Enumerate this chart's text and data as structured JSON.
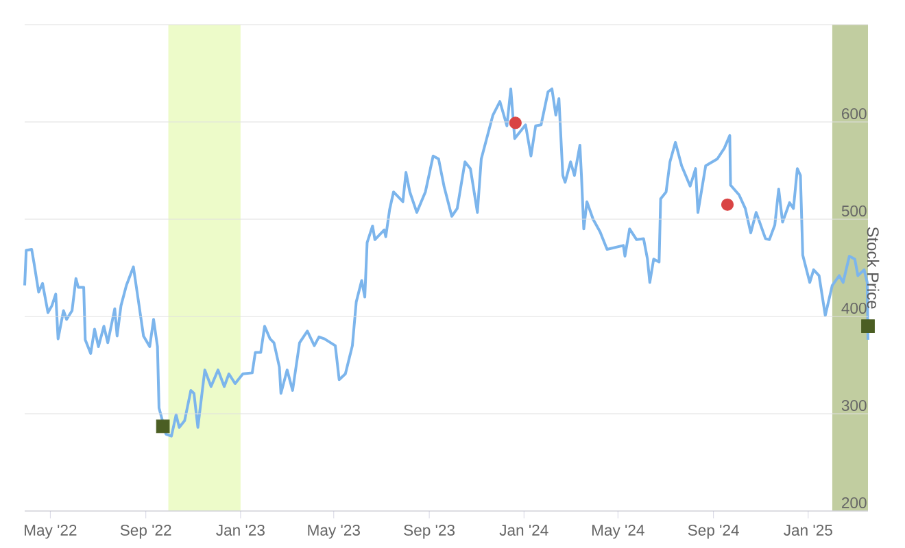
{
  "chart_data": {
    "type": "line",
    "ylabel": "Stock Price",
    "xlim": [
      "2022-03-29",
      "2025-03-19"
    ],
    "ylim": [
      200,
      700
    ],
    "xticks": [
      {
        "value": "2022-05-01",
        "label": "May '22"
      },
      {
        "value": "2022-09-01",
        "label": "Sep '22"
      },
      {
        "value": "2023-01-01",
        "label": "Jan '23"
      },
      {
        "value": "2023-05-01",
        "label": "May '23"
      },
      {
        "value": "2023-09-01",
        "label": "Sep '23"
      },
      {
        "value": "2024-01-01",
        "label": "Jan '24"
      },
      {
        "value": "2024-05-01",
        "label": "May '24"
      },
      {
        "value": "2024-09-01",
        "label": "Sep '24"
      },
      {
        "value": "2025-01-01",
        "label": "Jan '25"
      }
    ],
    "yticks": [
      200,
      300,
      400,
      500,
      600,
      {
        "value": 700,
        "label": null
      }
    ],
    "grid": "y",
    "bands": [
      {
        "axis": "x",
        "from": "2022-09-30",
        "to": "2023-01-01",
        "color": "#edfbc9"
      },
      {
        "axis": "x",
        "from": "2025-02-01",
        "to": "2025-03-19",
        "color": "#c1cda0"
      }
    ],
    "series": [
      {
        "color": "#7cb5ec",
        "x": [
          "2022-03-29",
          "2022-03-31",
          "2022-04-07",
          "2022-04-10",
          "2022-04-16",
          "2022-04-21",
          "2022-04-28",
          "2022-05-03",
          "2022-05-08",
          "2022-05-11",
          "2022-05-18",
          "2022-05-22",
          "2022-05-29",
          "2022-06-03",
          "2022-06-06",
          "2022-06-13",
          "2022-06-15",
          "2022-06-22",
          "2022-06-27",
          "2022-07-02",
          "2022-07-09",
          "2022-07-14",
          "2022-07-23",
          "2022-07-26",
          "2022-07-31",
          "2022-08-07",
          "2022-08-16",
          "2022-08-23",
          "2022-08-29",
          "2022-09-06",
          "2022-09-11",
          "2022-09-16",
          "2022-09-18",
          "2022-09-27",
          "2022-10-04",
          "2022-10-10",
          "2022-10-14",
          "2022-10-21",
          "2022-10-29",
          "2022-11-02",
          "2022-11-07",
          "2022-11-16",
          "2022-11-24",
          "2022-12-03",
          "2022-12-11",
          "2022-12-17",
          "2022-12-25",
          "2023-01-04",
          "2023-01-16",
          "2023-01-20",
          "2023-01-27",
          "2023-02-01",
          "2023-02-08",
          "2023-02-13",
          "2023-02-20",
          "2023-02-22",
          "2023-03-02",
          "2023-03-09",
          "2023-03-18",
          "2023-03-28",
          "2023-04-06",
          "2023-04-12",
          "2023-04-19",
          "2023-05-03",
          "2023-05-08",
          "2023-05-16",
          "2023-05-25",
          "2023-05-30",
          "2023-06-06",
          "2023-06-10",
          "2023-06-13",
          "2023-06-20",
          "2023-06-23",
          "2023-07-05",
          "2023-07-07",
          "2023-07-12",
          "2023-07-17",
          "2023-07-29",
          "2023-08-02",
          "2023-08-07",
          "2023-08-16",
          "2023-08-27",
          "2023-09-06",
          "2023-09-13",
          "2023-09-20",
          "2023-09-30",
          "2023-10-07",
          "2023-10-17",
          "2023-10-24",
          "2023-11-02",
          "2023-11-07",
          "2023-11-22",
          "2023-12-01",
          "2023-12-10",
          "2023-12-15",
          "2023-12-20",
          "2024-01-03",
          "2024-01-10",
          "2024-01-16",
          "2024-01-23",
          "2024-02-01",
          "2024-02-06",
          "2024-02-11",
          "2024-02-15",
          "2024-02-20",
          "2024-02-23",
          "2024-03-01",
          "2024-03-06",
          "2024-03-13",
          "2024-03-15",
          "2024-03-18",
          "2024-03-22",
          "2024-03-30",
          "2024-04-08",
          "2024-04-17",
          "2024-05-08",
          "2024-05-10",
          "2024-05-16",
          "2024-05-25",
          "2024-06-03",
          "2024-06-08",
          "2024-06-11",
          "2024-06-16",
          "2024-06-23",
          "2024-06-25",
          "2024-07-02",
          "2024-07-07",
          "2024-07-14",
          "2024-07-22",
          "2024-08-02",
          "2024-08-09",
          "2024-08-12",
          "2024-08-22",
          "2024-09-06",
          "2024-09-15",
          "2024-09-22",
          "2024-09-23",
          "2024-10-04",
          "2024-10-12",
          "2024-10-19",
          "2024-10-26",
          "2024-11-07",
          "2024-11-12",
          "2024-11-19",
          "2024-11-24",
          "2024-11-29",
          "2024-12-08",
          "2024-12-13",
          "2024-12-18",
          "2024-12-22",
          "2024-12-25",
          "2025-01-03",
          "2025-01-08",
          "2025-01-15",
          "2025-01-23",
          "2025-02-01",
          "2025-02-10",
          "2025-02-15",
          "2025-02-23",
          "2025-03-02",
          "2025-03-06",
          "2025-03-14",
          "2025-03-18",
          "2025-03-19"
        ],
        "values": [
          432,
          468,
          469,
          455,
          425,
          434,
          404,
          411,
          423,
          377,
          406,
          397,
          406,
          439,
          430,
          430,
          376,
          362,
          387,
          369,
          390,
          373,
          408,
          380,
          411,
          432,
          451,
          413,
          380,
          369,
          397,
          369,
          306,
          279,
          277,
          299,
          286,
          293,
          324,
          321,
          286,
          345,
          328,
          345,
          328,
          341,
          331,
          341,
          342,
          363,
          363,
          390,
          377,
          373,
          348,
          321,
          345,
          324,
          373,
          385,
          370,
          379,
          377,
          370,
          335,
          341,
          370,
          415,
          437,
          420,
          476,
          493,
          479,
          489,
          482,
          510,
          528,
          518,
          548,
          528,
          507,
          528,
          565,
          562,
          534,
          503,
          511,
          559,
          552,
          507,
          562,
          607,
          621,
          596,
          634,
          583,
          597,
          565,
          596,
          597,
          631,
          634,
          607,
          624,
          545,
          538,
          559,
          545,
          576,
          545,
          490,
          518,
          500,
          487,
          469,
          473,
          462,
          490,
          479,
          480,
          459,
          435,
          459,
          456,
          521,
          528,
          559,
          579,
          555,
          534,
          552,
          507,
          555,
          562,
          573,
          586,
          535,
          525,
          511,
          486,
          507,
          480,
          479,
          494,
          531,
          497,
          517,
          511,
          552,
          545,
          463,
          435,
          448,
          442,
          401,
          432,
          442,
          435,
          462,
          459,
          442,
          448,
          435,
          376
        ]
      },
      {
        "type": "scatter",
        "marker": "square",
        "color": "#4b5e23",
        "x": [
          "2022-09-23",
          "2025-03-19"
        ],
        "values": [
          287,
          390
        ]
      },
      {
        "type": "scatter",
        "marker": "circle",
        "color": "#d94444",
        "x": [
          "2023-12-21",
          "2024-09-19"
        ],
        "values": [
          599,
          515
        ]
      }
    ]
  }
}
